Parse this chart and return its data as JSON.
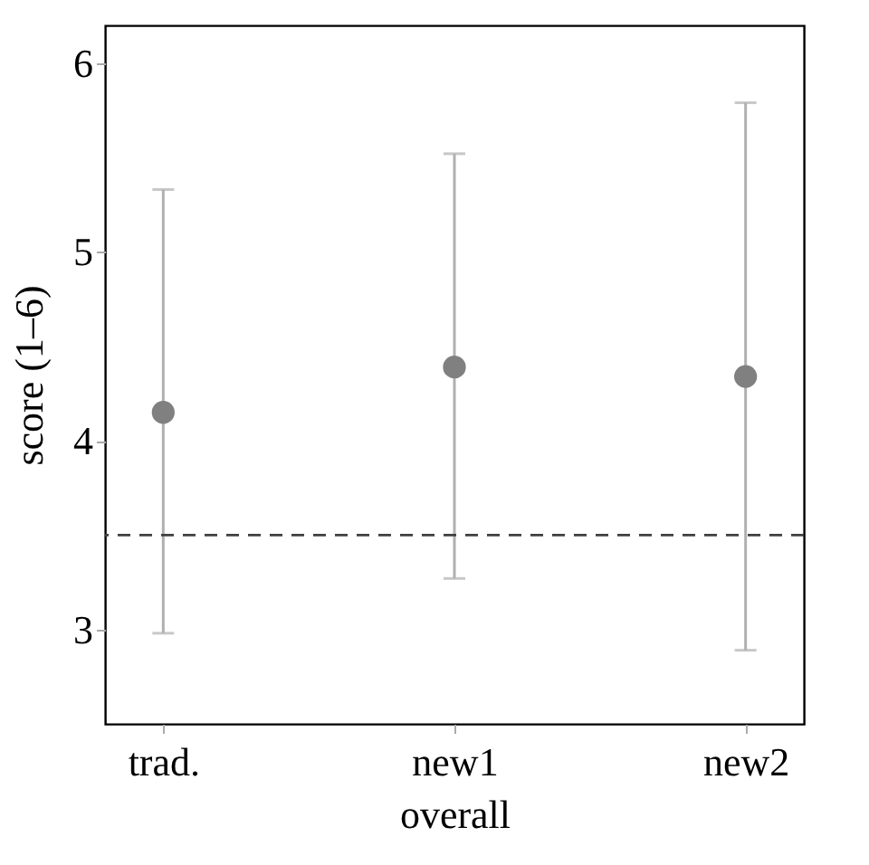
{
  "chart_data": {
    "type": "scatter",
    "xlabel": "overall",
    "ylabel": "score (1–6)",
    "categories": [
      "trad.",
      "new1",
      "new2"
    ],
    "series": [
      {
        "color": "#808080",
        "values": [
          4.15,
          4.39,
          4.34
        ],
        "errors": [
          [
            2.98,
            5.33
          ],
          [
            3.27,
            5.52
          ],
          [
            2.89,
            5.79
          ]
        ]
      }
    ],
    "ylim": [
      2.5,
      6.2
    ],
    "yticks": [
      3,
      4,
      5,
      6
    ],
    "grid": false,
    "marker": "circle",
    "ref_lines": [
      {
        "axis": "y",
        "value": 3.5,
        "color": "#404040",
        "line_style": "dashed"
      }
    ]
  }
}
